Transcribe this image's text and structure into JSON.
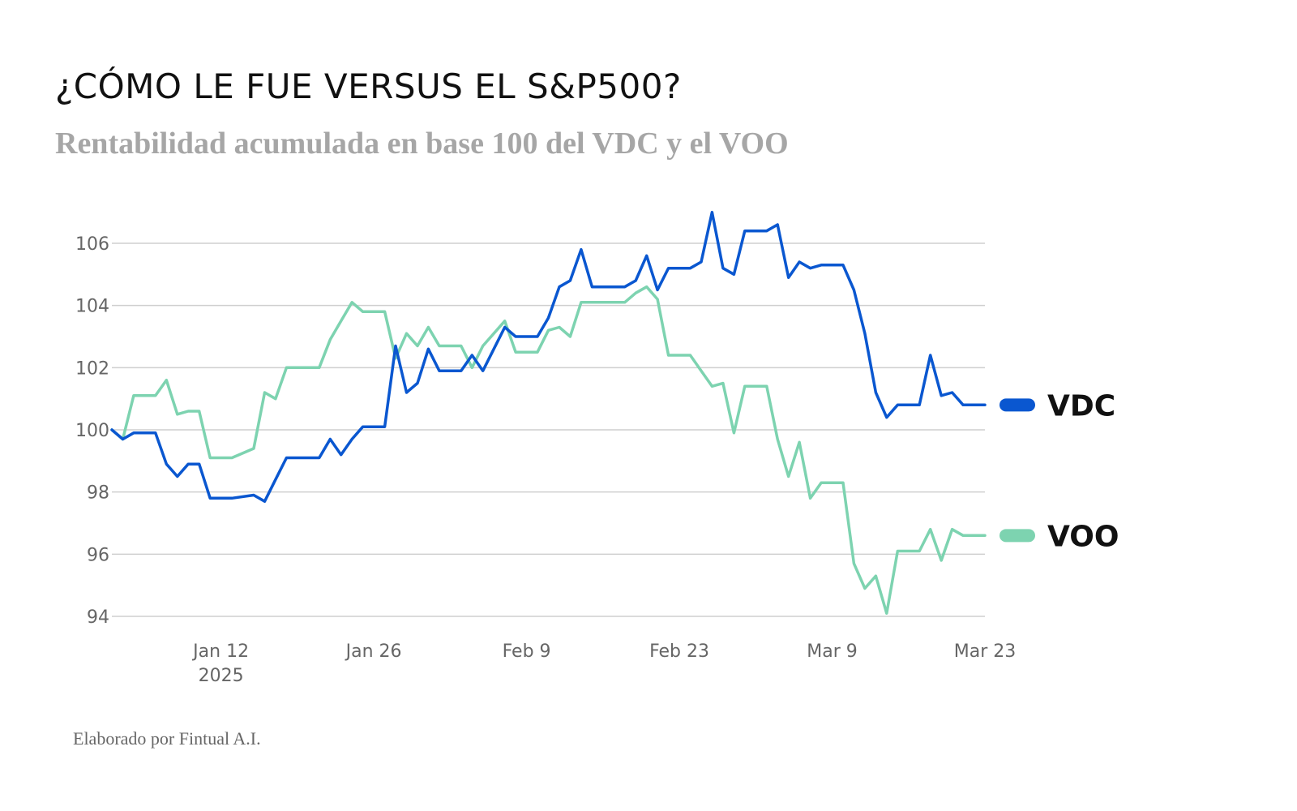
{
  "header": {
    "title": "¿CÓMO LE FUE VERSUS EL S&P500?",
    "subtitle": "Rentabilidad acumulada en base 100 del VDC y el VOO"
  },
  "footer": {
    "credit": "Elaborado por Fintual A.I."
  },
  "chart_data": {
    "type": "line",
    "title": "¿CÓMO LE FUE VERSUS EL S&P500?",
    "subtitle": "Rentabilidad acumulada en base 100 del VDC y el VOO",
    "xlabel": "",
    "ylabel": "",
    "ylim": [
      94,
      107
    ],
    "xlim": [
      "2025-01-02",
      "2025-03-23"
    ],
    "grid": true,
    "legend": "right",
    "y_ticks": [
      94,
      96,
      98,
      100,
      102,
      104,
      106
    ],
    "x_ticks": [
      {
        "date": "2025-01-12",
        "label": "Jan 12",
        "sublabel": "2025"
      },
      {
        "date": "2025-01-26",
        "label": "Jan 26",
        "sublabel": ""
      },
      {
        "date": "2025-02-09",
        "label": "Feb 9",
        "sublabel": ""
      },
      {
        "date": "2025-02-23",
        "label": "Feb 23",
        "sublabel": ""
      },
      {
        "date": "2025-03-09",
        "label": "Mar 9",
        "sublabel": ""
      },
      {
        "date": "2025-03-23",
        "label": "Mar 23",
        "sublabel": ""
      }
    ],
    "series": [
      {
        "name": "VDC",
        "color": "#0a57d0",
        "points": [
          [
            "2025-01-02",
            100.0
          ],
          [
            "2025-01-03",
            99.7
          ],
          [
            "2025-01-04",
            99.9
          ],
          [
            "2025-01-05",
            99.9
          ],
          [
            "2025-01-06",
            99.9
          ],
          [
            "2025-01-07",
            98.9
          ],
          [
            "2025-01-08",
            98.5
          ],
          [
            "2025-01-09",
            98.9
          ],
          [
            "2025-01-10",
            98.9
          ],
          [
            "2025-01-11",
            97.8
          ],
          [
            "2025-01-12",
            97.8
          ],
          [
            "2025-01-13",
            97.8
          ],
          [
            "2025-01-15",
            97.9
          ],
          [
            "2025-01-16",
            97.7
          ],
          [
            "2025-01-17",
            98.4
          ],
          [
            "2025-01-18",
            99.1
          ],
          [
            "2025-01-20",
            99.1
          ],
          [
            "2025-01-21",
            99.1
          ],
          [
            "2025-01-22",
            99.7
          ],
          [
            "2025-01-23",
            99.2
          ],
          [
            "2025-01-24",
            99.7
          ],
          [
            "2025-01-25",
            100.1
          ],
          [
            "2025-01-27",
            100.1
          ],
          [
            "2025-01-28",
            102.7
          ],
          [
            "2025-01-29",
            101.2
          ],
          [
            "2025-01-30",
            101.5
          ],
          [
            "2025-01-31",
            102.6
          ],
          [
            "2025-02-01",
            101.9
          ],
          [
            "2025-02-03",
            101.9
          ],
          [
            "2025-02-04",
            102.4
          ],
          [
            "2025-02-05",
            101.9
          ],
          [
            "2025-02-06",
            102.6
          ],
          [
            "2025-02-07",
            103.3
          ],
          [
            "2025-02-08",
            103.0
          ],
          [
            "2025-02-10",
            103.0
          ],
          [
            "2025-02-11",
            103.6
          ],
          [
            "2025-02-12",
            104.6
          ],
          [
            "2025-02-13",
            104.8
          ],
          [
            "2025-02-14",
            105.8
          ],
          [
            "2025-02-15",
            104.6
          ],
          [
            "2025-02-18",
            104.6
          ],
          [
            "2025-02-19",
            104.8
          ],
          [
            "2025-02-20",
            105.6
          ],
          [
            "2025-02-21",
            104.5
          ],
          [
            "2025-02-22",
            105.2
          ],
          [
            "2025-02-24",
            105.2
          ],
          [
            "2025-02-25",
            105.4
          ],
          [
            "2025-02-26",
            107.0
          ],
          [
            "2025-02-27",
            105.2
          ],
          [
            "2025-02-28",
            105.0
          ],
          [
            "2025-03-01",
            106.4
          ],
          [
            "2025-03-03",
            106.4
          ],
          [
            "2025-03-04",
            106.6
          ],
          [
            "2025-03-05",
            104.9
          ],
          [
            "2025-03-06",
            105.4
          ],
          [
            "2025-03-07",
            105.2
          ],
          [
            "2025-03-08",
            105.3
          ],
          [
            "2025-03-10",
            105.3
          ],
          [
            "2025-03-11",
            104.5
          ],
          [
            "2025-03-12",
            103.1
          ],
          [
            "2025-03-13",
            101.2
          ],
          [
            "2025-03-14",
            100.4
          ],
          [
            "2025-03-15",
            100.8
          ],
          [
            "2025-03-17",
            100.8
          ],
          [
            "2025-03-18",
            102.4
          ],
          [
            "2025-03-19",
            101.1
          ],
          [
            "2025-03-20",
            101.2
          ],
          [
            "2025-03-21",
            100.8
          ],
          [
            "2025-03-23",
            100.8
          ]
        ]
      },
      {
        "name": "VOO",
        "color": "#7dd3b0",
        "points": [
          [
            "2025-01-02",
            100.0
          ],
          [
            "2025-01-03",
            99.7
          ],
          [
            "2025-01-04",
            101.1
          ],
          [
            "2025-01-06",
            101.1
          ],
          [
            "2025-01-07",
            101.6
          ],
          [
            "2025-01-08",
            100.5
          ],
          [
            "2025-01-09",
            100.6
          ],
          [
            "2025-01-10",
            100.6
          ],
          [
            "2025-01-11",
            99.1
          ],
          [
            "2025-01-13",
            99.1
          ],
          [
            "2025-01-15",
            99.4
          ],
          [
            "2025-01-16",
            101.2
          ],
          [
            "2025-01-17",
            101.0
          ],
          [
            "2025-01-18",
            102.0
          ],
          [
            "2025-01-21",
            102.0
          ],
          [
            "2025-01-22",
            102.9
          ],
          [
            "2025-01-23",
            103.5
          ],
          [
            "2025-01-24",
            104.1
          ],
          [
            "2025-01-25",
            103.8
          ],
          [
            "2025-01-27",
            103.8
          ],
          [
            "2025-01-28",
            102.3
          ],
          [
            "2025-01-29",
            103.1
          ],
          [
            "2025-01-30",
            102.7
          ],
          [
            "2025-01-31",
            103.3
          ],
          [
            "2025-02-01",
            102.7
          ],
          [
            "2025-02-03",
            102.7
          ],
          [
            "2025-02-04",
            102.0
          ],
          [
            "2025-02-05",
            102.7
          ],
          [
            "2025-02-06",
            103.1
          ],
          [
            "2025-02-07",
            103.5
          ],
          [
            "2025-02-08",
            102.5
          ],
          [
            "2025-02-10",
            102.5
          ],
          [
            "2025-02-11",
            103.2
          ],
          [
            "2025-02-12",
            103.3
          ],
          [
            "2025-02-13",
            103.0
          ],
          [
            "2025-02-14",
            104.1
          ],
          [
            "2025-02-17",
            104.1
          ],
          [
            "2025-02-18",
            104.1
          ],
          [
            "2025-02-19",
            104.4
          ],
          [
            "2025-02-20",
            104.6
          ],
          [
            "2025-02-21",
            104.2
          ],
          [
            "2025-02-22",
            102.4
          ],
          [
            "2025-02-24",
            102.4
          ],
          [
            "2025-02-25",
            101.9
          ],
          [
            "2025-02-26",
            101.4
          ],
          [
            "2025-02-27",
            101.5
          ],
          [
            "2025-02-28",
            99.9
          ],
          [
            "2025-03-01",
            101.4
          ],
          [
            "2025-03-03",
            101.4
          ],
          [
            "2025-03-04",
            99.7
          ],
          [
            "2025-03-05",
            98.5
          ],
          [
            "2025-03-06",
            99.6
          ],
          [
            "2025-03-07",
            97.8
          ],
          [
            "2025-03-08",
            98.3
          ],
          [
            "2025-03-10",
            98.3
          ],
          [
            "2025-03-11",
            95.7
          ],
          [
            "2025-03-12",
            94.9
          ],
          [
            "2025-03-13",
            95.3
          ],
          [
            "2025-03-14",
            94.1
          ],
          [
            "2025-03-15",
            96.1
          ],
          [
            "2025-03-17",
            96.1
          ],
          [
            "2025-03-18",
            96.8
          ],
          [
            "2025-03-19",
            95.8
          ],
          [
            "2025-03-20",
            96.8
          ],
          [
            "2025-03-21",
            96.6
          ],
          [
            "2025-03-23",
            96.6
          ]
        ]
      }
    ]
  }
}
